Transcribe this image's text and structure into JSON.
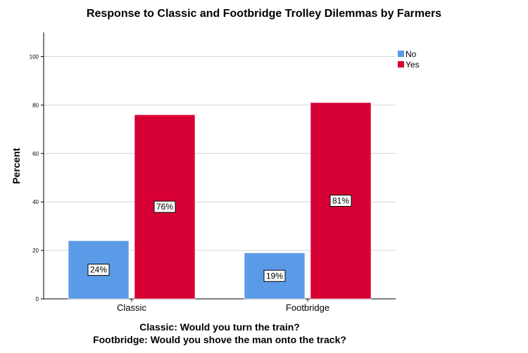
{
  "chart_data": {
    "type": "bar",
    "title": "Response to Classic and Footbridge Trolley Dilemmas by Farmers",
    "xlabel_lines": [
      "Classic: Would you turn the train?",
      "Footbridge: Would you shove the man onto the track?"
    ],
    "ylabel": "Percent",
    "categories": [
      "Classic",
      "Footbridge"
    ],
    "series": [
      {
        "name": "No",
        "values": [
          24,
          19
        ],
        "labels": [
          "24%",
          "19%"
        ],
        "color": "#5b9ae6"
      },
      {
        "name": "Yes",
        "values": [
          76,
          81
        ],
        "labels": [
          "76%",
          "81%"
        ],
        "color": "#d70035"
      }
    ],
    "ylim": [
      0,
      110
    ],
    "yticks": [
      "0",
      "20",
      "40",
      "60",
      "80",
      "100"
    ],
    "grid": true,
    "legend_position": "top-right"
  }
}
